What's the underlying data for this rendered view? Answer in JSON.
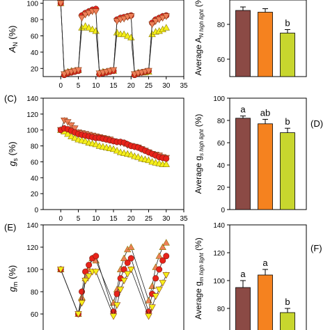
{
  "colors": {
    "brown": "#8b4a45",
    "orange": "#f5821f",
    "lime": "#c8d62e",
    "red_marker": "#e8231a",
    "salmon_marker": "#ee7f58",
    "yellow_marker": "#f5ef1a"
  },
  "chart_data": [
    {
      "id": "AN-time",
      "type": "line",
      "ylabel_main": "A",
      "ylabel_sub": "N",
      "ylabel_unit": " (%)",
      "xlim": [
        -5,
        35
      ],
      "ylim": [
        0,
        100
      ],
      "xticks": [
        "0",
        "5",
        "10",
        "15",
        "20",
        "25",
        "30",
        "35"
      ],
      "yticks": [
        "20",
        "40",
        "60",
        "80",
        "100"
      ],
      "series": [
        {
          "marker": "triangle-up",
          "color": "yellow",
          "x": [
            0,
            1,
            2,
            3,
            4,
            5,
            6,
            7,
            8,
            9,
            10,
            11,
            12,
            13,
            14,
            15,
            16,
            17,
            18,
            19,
            20,
            21,
            22,
            23,
            24,
            25,
            26,
            27,
            28,
            29,
            30
          ],
          "y": [
            100,
            14,
            16,
            17,
            17,
            18,
            70,
            72,
            70,
            68,
            66,
            15,
            16,
            16,
            17,
            17,
            64,
            62,
            62,
            60,
            58,
            14,
            15,
            15,
            15,
            16,
            62,
            65,
            66,
            68,
            70
          ]
        },
        {
          "marker": "circle",
          "color": "red",
          "x": [
            0,
            1,
            2,
            3,
            4,
            5,
            6,
            7,
            8,
            9,
            10,
            11,
            12,
            13,
            14,
            15,
            16,
            17,
            18,
            19,
            20,
            21,
            22,
            23,
            24,
            25,
            26,
            27,
            28,
            29,
            30
          ],
          "y": [
            100,
            12,
            14,
            15,
            16,
            17,
            85,
            88,
            90,
            92,
            93,
            13,
            14,
            15,
            16,
            17,
            80,
            82,
            83,
            84,
            85,
            12,
            14,
            15,
            16,
            17,
            76,
            80,
            82,
            84,
            85
          ]
        },
        {
          "marker": "triangle-down",
          "color": "salmon",
          "x": [
            0,
            1,
            2,
            3,
            4,
            5,
            6,
            7,
            8,
            9,
            10,
            11,
            12,
            13,
            14,
            15,
            16,
            17,
            18,
            19,
            20,
            21,
            22,
            23,
            24,
            25,
            26,
            27,
            28,
            29,
            30
          ],
          "y": [
            100,
            13,
            15,
            16,
            17,
            18,
            82,
            86,
            88,
            90,
            90,
            14,
            15,
            16,
            17,
            18,
            78,
            80,
            81,
            83,
            84,
            13,
            14,
            15,
            16,
            17,
            74,
            78,
            80,
            82,
            84
          ]
        }
      ]
    },
    {
      "id": "AN-bars",
      "type": "bar",
      "ylabel_main": "Average A",
      "ylabel_sub": "N high light",
      "ylabel_unit": " (%)",
      "ylim": [
        0,
        100
      ],
      "yticks": [
        "60",
        "80"
      ],
      "categories": [
        "Brown",
        "Orange",
        "Lime"
      ],
      "values": [
        88,
        87,
        75
      ],
      "errors": [
        2,
        2,
        2
      ],
      "letters": [
        "",
        "",
        "b"
      ]
    },
    {
      "id": "gs-time",
      "panel_label": "(C)",
      "type": "line",
      "ylabel_main": "g",
      "ylabel_sub": "s",
      "ylabel_unit": " (%)",
      "xlim": [
        -5,
        35
      ],
      "ylim": [
        0,
        140
      ],
      "xticks": [
        "0",
        "5",
        "10",
        "15",
        "20",
        "25",
        "30",
        "35"
      ],
      "yticks": [
        "0",
        "20",
        "40",
        "60",
        "80",
        "100",
        "120",
        "140"
      ],
      "series": [
        {
          "marker": "triangle-up",
          "color": "yellow",
          "x": [
            0,
            1,
            2,
            3,
            4,
            5,
            6,
            7,
            8,
            9,
            10,
            11,
            12,
            13,
            14,
            15,
            16,
            17,
            18,
            19,
            20,
            21,
            22,
            23,
            24,
            25,
            26,
            27,
            28,
            29,
            30
          ],
          "y": [
            100,
            98,
            95,
            92,
            90,
            88,
            87,
            86,
            84,
            83,
            82,
            80,
            79,
            78,
            77,
            76,
            74,
            72,
            71,
            70,
            69,
            67,
            66,
            64,
            63,
            62,
            60,
            59,
            58,
            57,
            57
          ]
        },
        {
          "marker": "triangle-down",
          "color": "salmon",
          "x": [
            0,
            1,
            2,
            3,
            4,
            5,
            6,
            7,
            8,
            9,
            10,
            11,
            12,
            13,
            14,
            15,
            16,
            17,
            18,
            19,
            20,
            21,
            22,
            23,
            24,
            25,
            26,
            27,
            28,
            29,
            30
          ],
          "y": [
            100,
            112,
            110,
            106,
            102,
            97,
            96,
            95,
            94,
            93,
            92,
            91,
            90,
            89,
            88,
            86,
            85,
            84,
            83,
            81,
            80,
            79,
            78,
            76,
            74,
            72,
            70,
            69,
            68,
            66,
            65
          ]
        },
        {
          "marker": "circle",
          "color": "red",
          "x": [
            0,
            1,
            2,
            3,
            4,
            5,
            6,
            7,
            8,
            9,
            10,
            11,
            12,
            13,
            14,
            15,
            16,
            17,
            18,
            19,
            20,
            21,
            22,
            23,
            24,
            25,
            26,
            27,
            28,
            29,
            30
          ],
          "y": [
            100,
            102,
            101,
            99,
            97,
            95,
            94,
            93,
            92,
            91,
            90,
            90,
            89,
            88,
            87,
            86,
            85,
            85,
            84,
            82,
            80,
            79,
            78,
            76,
            74,
            72,
            70,
            68,
            66,
            65,
            64
          ]
        }
      ]
    },
    {
      "id": "gs-bars",
      "panel_label": "(D)",
      "type": "bar",
      "ylabel_main": "Average g",
      "ylabel_sub": "s high light",
      "ylabel_unit": " (%)",
      "ylim": [
        0,
        100
      ],
      "yticks": [
        "0",
        "20",
        "40",
        "60",
        "80",
        "100"
      ],
      "categories": [
        "Brown",
        "Orange",
        "Lime"
      ],
      "values": [
        82,
        77,
        69
      ],
      "errors": [
        2,
        4,
        4
      ],
      "letters": [
        "a",
        "ab",
        "b"
      ]
    },
    {
      "id": "gm-time",
      "panel_label": "(E)",
      "type": "line",
      "ylabel_main": "g",
      "ylabel_sub": "m",
      "ylabel_unit": " (%)",
      "xlim": [
        -5,
        35
      ],
      "ylim": [
        0,
        140
      ],
      "yticks": [
        "60",
        "80",
        "100",
        "120",
        "140"
      ],
      "series": [
        {
          "marker": "triangle-up",
          "color": "salmon",
          "x": [
            0,
            5,
            6,
            7,
            8,
            9,
            10,
            15,
            16,
            17,
            18,
            19,
            20,
            25,
            26,
            27,
            28,
            29,
            30
          ],
          "y": [
            100,
            60,
            75,
            92,
            100,
            110,
            108,
            70,
            82,
            100,
            110,
            118,
            120,
            72,
            85,
            102,
            112,
            120,
            124
          ]
        },
        {
          "marker": "circle",
          "color": "red",
          "x": [
            0,
            5,
            6,
            7,
            8,
            9,
            10,
            15,
            16,
            17,
            18,
            19,
            20,
            25,
            26,
            27,
            28,
            29,
            30
          ],
          "y": [
            100,
            60,
            80,
            98,
            104,
            110,
            112,
            62,
            78,
            92,
            100,
            106,
            110,
            62,
            78,
            92,
            100,
            108,
            112
          ]
        },
        {
          "marker": "triangle-down",
          "color": "yellow",
          "x": [
            0,
            5,
            6,
            7,
            8,
            9,
            10,
            15,
            16,
            17,
            18,
            19,
            20,
            25,
            26,
            27,
            28,
            29,
            30
          ],
          "y": [
            100,
            60,
            70,
            90,
            94,
            98,
            98,
            58,
            68,
            82,
            90,
            96,
            100,
            58,
            66,
            76,
            82,
            88,
            95
          ]
        }
      ]
    },
    {
      "id": "gm-bars",
      "panel_label": "(F)",
      "type": "bar",
      "ylabel_main": "Average g",
      "ylabel_sub": "m high light",
      "ylabel_unit": " (%)",
      "ylim": [
        60,
        140
      ],
      "yticks": [
        "60",
        "80",
        "100",
        "120",
        "140"
      ],
      "categories": [
        "Brown",
        "Orange",
        "Lime"
      ],
      "values": [
        95,
        104,
        77
      ],
      "errors": [
        5,
        4,
        3
      ],
      "letters": [
        "a",
        "a",
        "b"
      ]
    }
  ]
}
